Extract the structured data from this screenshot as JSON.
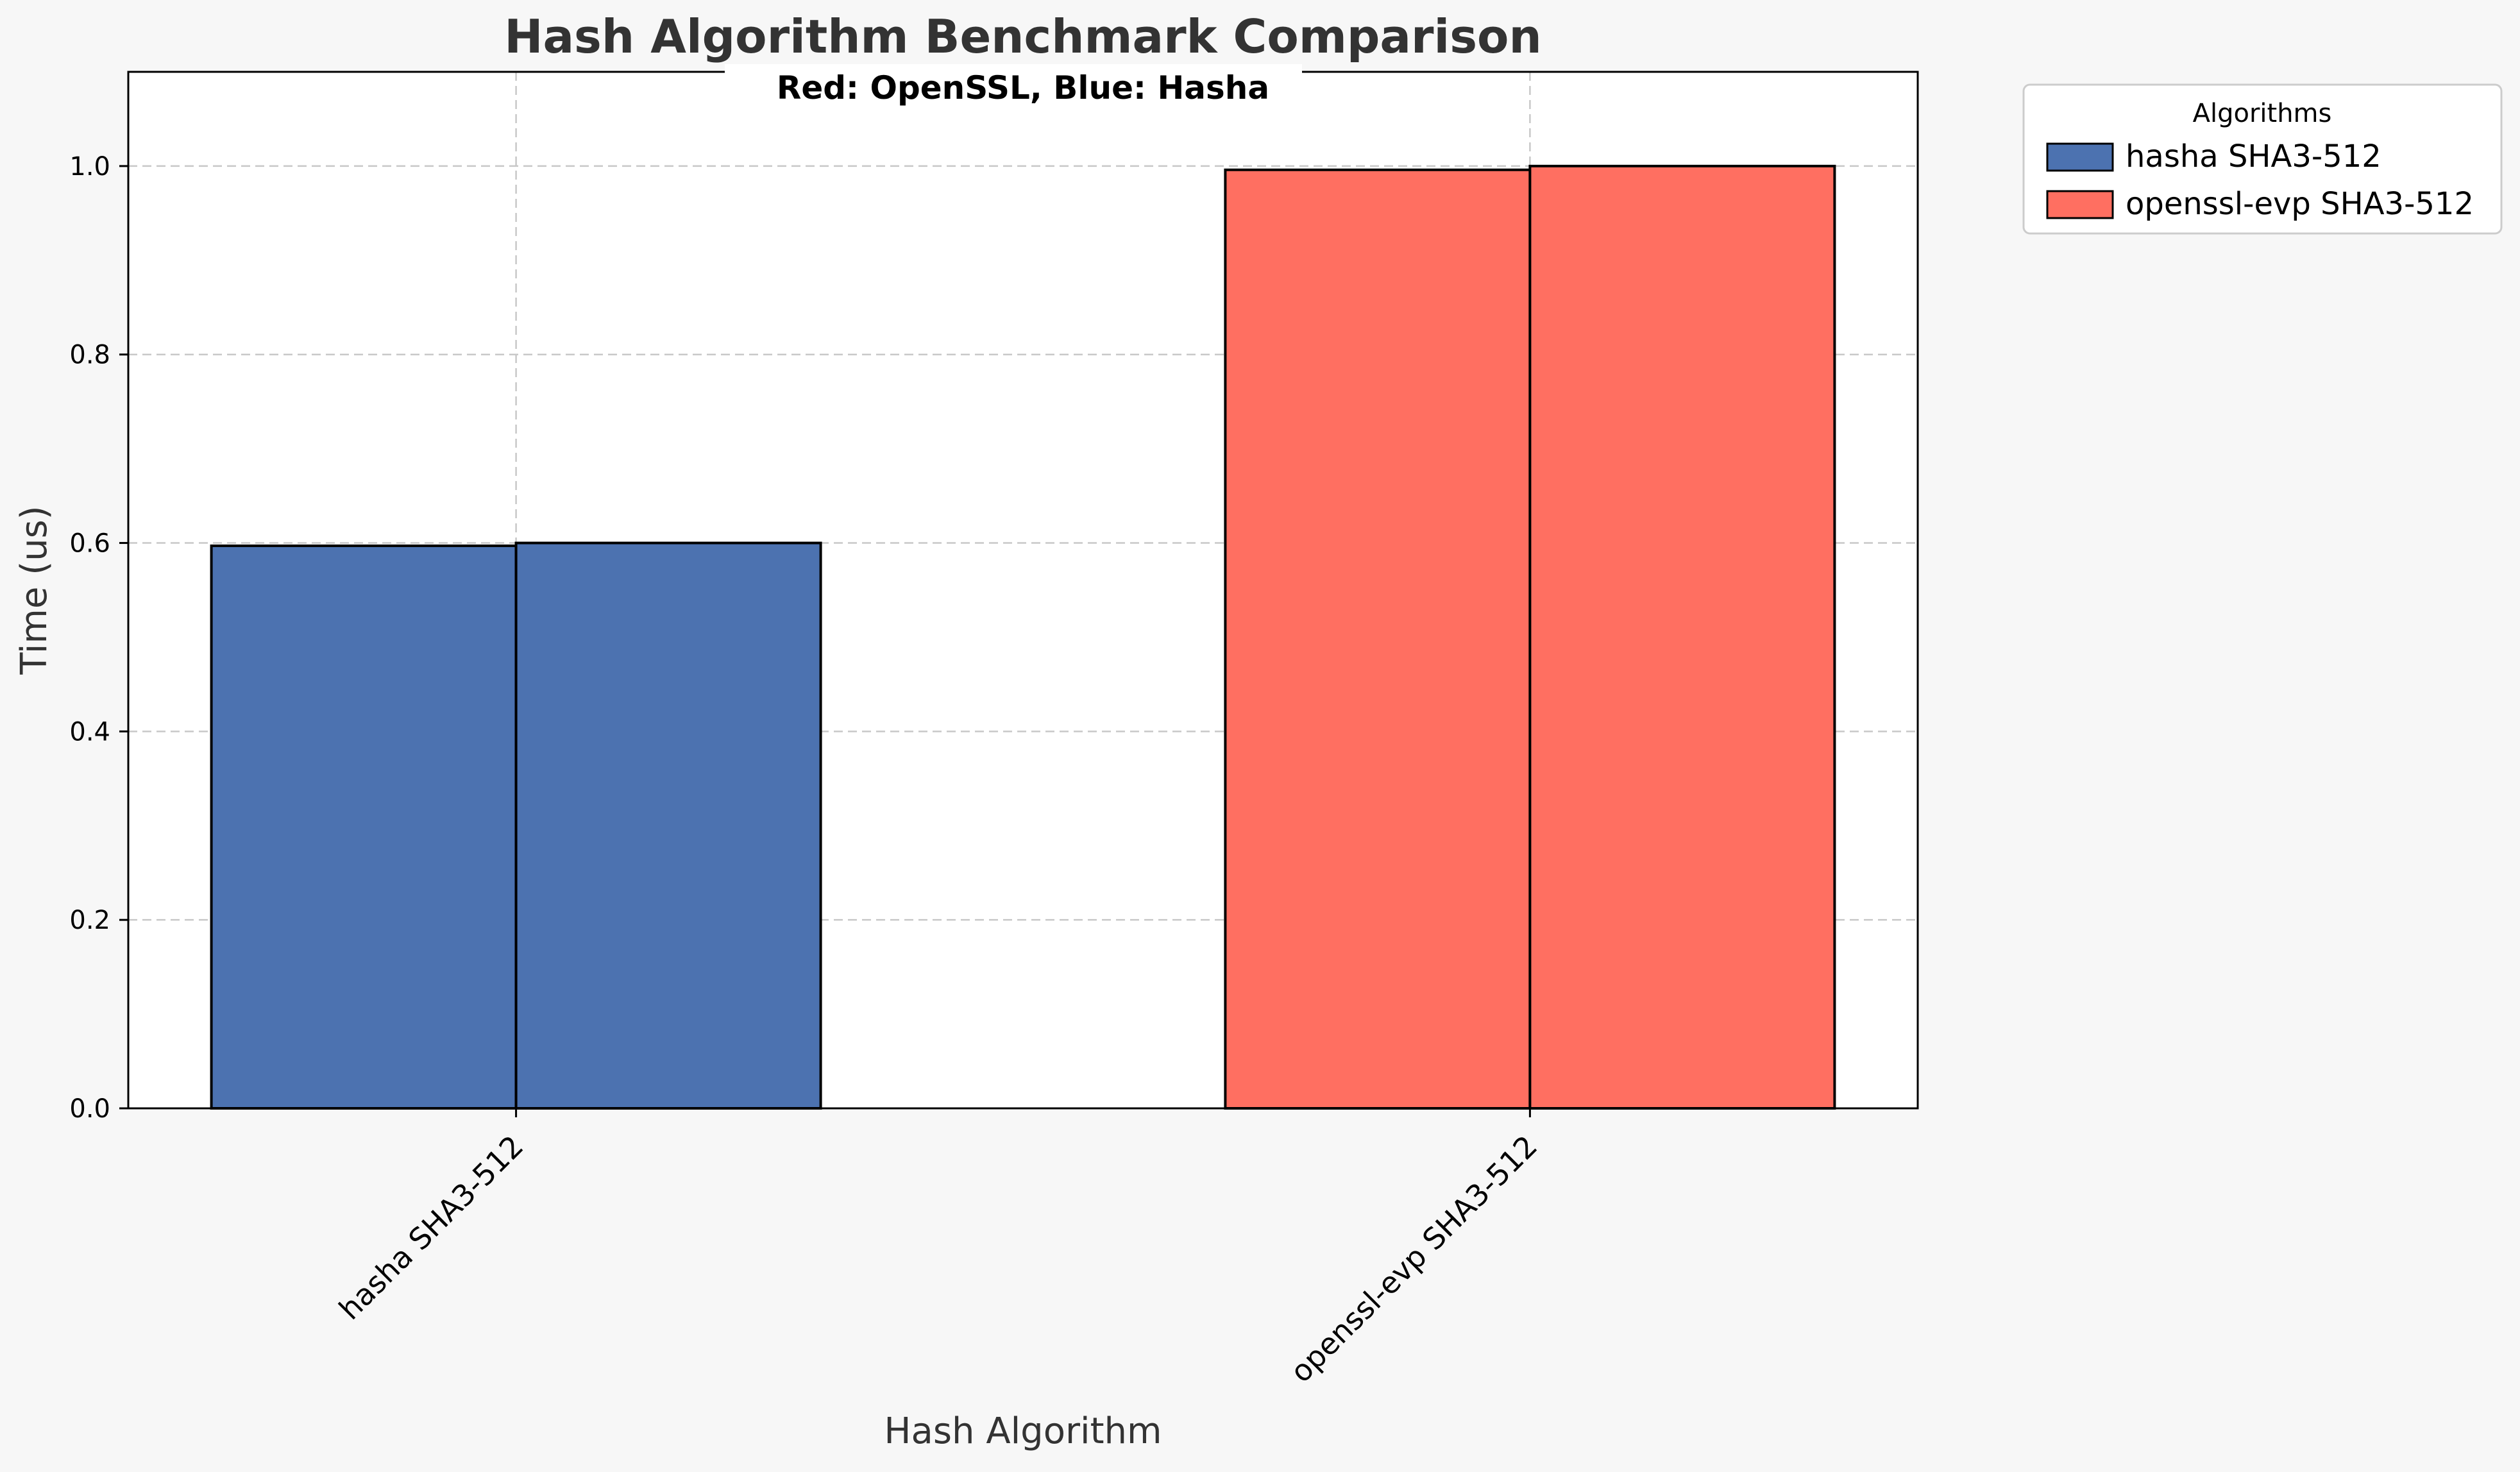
{
  "chart_data": {
    "type": "bar",
    "title": "Hash Algorithm Benchmark Comparison",
    "subtitle": "Red: OpenSSL, Blue: Hasha",
    "xlabel": "Hash Algorithm",
    "ylabel": "Time (us)",
    "ylim": [
      0,
      1.1
    ],
    "yticks": [
      "0.0",
      "0.2",
      "0.4",
      "0.6",
      "0.8",
      "1.0"
    ],
    "grid": true,
    "legend": {
      "title": "Algorithms",
      "placement": "outside-top-right",
      "entries": [
        {
          "label": "hasha SHA3-512",
          "color": "#4c72b0"
        },
        {
          "label": "openssl-evp SHA3-512",
          "color": "#ff6f61"
        }
      ]
    },
    "categories": [
      "hasha SHA3-512",
      "openssl-evp SHA3-512"
    ],
    "bars": [
      {
        "category": "hasha SHA3-512",
        "values": [
          0.597,
          0.6
        ],
        "color": "#4c72b0"
      },
      {
        "category": "openssl-evp SHA3-512",
        "values": [
          0.996,
          1.0
        ],
        "color": "#ff6f61"
      }
    ]
  }
}
